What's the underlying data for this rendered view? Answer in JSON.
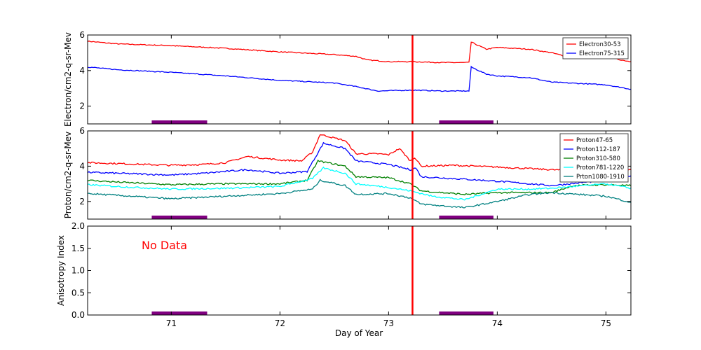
{
  "chart_data": [
    {
      "type": "line",
      "ylabel": "Electron/cm2-q-sr-Mev",
      "ylim": [
        1,
        6
      ],
      "yticks": [
        "2",
        "4",
        "6"
      ],
      "legend": "top-right",
      "series": [
        {
          "name": "Electron30-53",
          "color": "#ff0000",
          "points": [
            [
              70.23,
              5.65
            ],
            [
              70.5,
              5.5
            ],
            [
              71,
              5.4
            ],
            [
              71.5,
              5.25
            ],
            [
              72,
              5.05
            ],
            [
              72.5,
              4.9
            ],
            [
              72.7,
              4.8
            ],
            [
              72.8,
              4.6
            ],
            [
              73,
              4.5
            ],
            [
              73.22,
              4.5
            ],
            [
              73.5,
              4.45
            ],
            [
              73.74,
              4.45
            ],
            [
              73.76,
              5.6
            ],
            [
              73.9,
              5.2
            ],
            [
              74,
              5.3
            ],
            [
              74.3,
              5.2
            ],
            [
              74.5,
              5.0
            ],
            [
              74.6,
              4.85
            ],
            [
              75,
              4.75
            ],
            [
              75.23,
              4.5
            ]
          ]
        },
        {
          "name": "Electron75-315",
          "color": "#0000ff",
          "points": [
            [
              70.23,
              4.2
            ],
            [
              70.5,
              4.05
            ],
            [
              71,
              3.9
            ],
            [
              71.5,
              3.7
            ],
            [
              72,
              3.45
            ],
            [
              72.5,
              3.3
            ],
            [
              72.7,
              3.1
            ],
            [
              72.9,
              2.85
            ],
            [
              73.22,
              2.9
            ],
            [
              73.5,
              2.85
            ],
            [
              73.74,
              2.85
            ],
            [
              73.76,
              4.2
            ],
            [
              73.9,
              3.8
            ],
            [
              74,
              3.7
            ],
            [
              74.3,
              3.6
            ],
            [
              74.5,
              3.35
            ],
            [
              75,
              3.2
            ],
            [
              75.23,
              2.95
            ]
          ]
        }
      ]
    },
    {
      "type": "line",
      "ylabel": "Proton/cm2-q-sr-Mev",
      "ylim": [
        1,
        6
      ],
      "yticks": [
        "2",
        "4",
        "6"
      ],
      "legend": "top-right",
      "series": [
        {
          "name": "Proton47-65",
          "color": "#ff0000",
          "points": [
            [
              70.23,
              4.2
            ],
            [
              70.5,
              4.15
            ],
            [
              71,
              4.05
            ],
            [
              71.3,
              4.1
            ],
            [
              71.5,
              4.2
            ],
            [
              71.7,
              4.55
            ],
            [
              72,
              4.35
            ],
            [
              72.2,
              4.3
            ],
            [
              72.3,
              4.8
            ],
            [
              72.37,
              5.8
            ],
            [
              72.5,
              5.6
            ],
            [
              72.6,
              5.45
            ],
            [
              72.7,
              4.7
            ],
            [
              72.9,
              4.7
            ],
            [
              73,
              4.65
            ],
            [
              73.1,
              5.0
            ],
            [
              73.2,
              4.3
            ],
            [
              73.24,
              4.5
            ],
            [
              73.3,
              4.0
            ],
            [
              73.6,
              4.05
            ],
            [
              74,
              3.95
            ],
            [
              74.5,
              3.8
            ],
            [
              75,
              3.7
            ],
            [
              75.23,
              3.8
            ]
          ]
        },
        {
          "name": "Proton112-187",
          "color": "#0000ff",
          "points": [
            [
              70.23,
              3.65
            ],
            [
              70.5,
              3.6
            ],
            [
              71,
              3.5
            ],
            [
              71.3,
              3.6
            ],
            [
              71.7,
              3.8
            ],
            [
              72,
              3.6
            ],
            [
              72.25,
              3.7
            ],
            [
              72.4,
              5.3
            ],
            [
              72.6,
              5.0
            ],
            [
              72.7,
              4.3
            ],
            [
              73,
              4.1
            ],
            [
              73.2,
              3.8
            ],
            [
              73.25,
              3.9
            ],
            [
              73.3,
              3.4
            ],
            [
              73.6,
              3.3
            ],
            [
              74,
              3.15
            ],
            [
              74.5,
              2.9
            ],
            [
              75,
              3.2
            ],
            [
              75.23,
              3.45
            ]
          ]
        },
        {
          "name": "Proton310-580",
          "color": "#008000",
          "points": [
            [
              70.23,
              3.2
            ],
            [
              70.5,
              3.1
            ],
            [
              71,
              2.95
            ],
            [
              71.5,
              3.0
            ],
            [
              72,
              3.0
            ],
            [
              72.25,
              3.2
            ],
            [
              72.35,
              4.3
            ],
            [
              72.6,
              4.0
            ],
            [
              72.7,
              3.4
            ],
            [
              73,
              3.35
            ],
            [
              73.2,
              3.0
            ],
            [
              73.3,
              2.6
            ],
            [
              73.7,
              2.4
            ],
            [
              74,
              2.5
            ],
            [
              74.5,
              2.5
            ],
            [
              74.7,
              2.9
            ],
            [
              75,
              2.95
            ],
            [
              75.23,
              2.9
            ]
          ]
        },
        {
          "name": "Proton781-1220",
          "color": "#00ffff",
          "points": [
            [
              70.23,
              2.95
            ],
            [
              70.5,
              2.85
            ],
            [
              71,
              2.7
            ],
            [
              71.5,
              2.75
            ],
            [
              72,
              2.85
            ],
            [
              72.3,
              3.3
            ],
            [
              72.4,
              3.9
            ],
            [
              72.6,
              3.6
            ],
            [
              72.7,
              3.0
            ],
            [
              73,
              2.8
            ],
            [
              73.2,
              2.6
            ],
            [
              73.4,
              2.3
            ],
            [
              73.7,
              2.1
            ],
            [
              74,
              2.7
            ],
            [
              74.3,
              2.7
            ],
            [
              74.5,
              2.75
            ],
            [
              75,
              3.0
            ],
            [
              75.23,
              2.75
            ]
          ]
        },
        {
          "name": "Prton1080-1910",
          "color": "#008080",
          "points": [
            [
              70.23,
              2.45
            ],
            [
              70.5,
              2.35
            ],
            [
              71,
              2.15
            ],
            [
              71.5,
              2.3
            ],
            [
              72,
              2.45
            ],
            [
              72.3,
              2.7
            ],
            [
              72.37,
              3.2
            ],
            [
              72.6,
              2.9
            ],
            [
              72.7,
              2.4
            ],
            [
              73,
              2.45
            ],
            [
              73.2,
              2.2
            ],
            [
              73.3,
              1.85
            ],
            [
              73.7,
              1.65
            ],
            [
              74,
              2.0
            ],
            [
              74.3,
              2.4
            ],
            [
              74.5,
              2.5
            ],
            [
              75,
              2.3
            ],
            [
              75.23,
              1.95
            ]
          ]
        }
      ]
    },
    {
      "type": "line",
      "ylabel": "Anisotropy Index",
      "ylim": [
        0,
        2
      ],
      "yticks": [
        "0.0",
        "0.5",
        "1.0",
        "1.5",
        "2.0"
      ],
      "annotation": "No Data",
      "series": []
    }
  ],
  "xlabel": "Day of Year",
  "xlim": [
    70.23,
    75.23
  ],
  "xticks": [
    "71",
    "72",
    "73",
    "74",
    "75"
  ],
  "event_line": {
    "x": 73.22,
    "color": "#ff0000"
  },
  "shaded_intervals": {
    "color": "#800080",
    "ranges": [
      [
        70.82,
        71.33
      ],
      [
        73.465,
        73.965
      ]
    ]
  }
}
